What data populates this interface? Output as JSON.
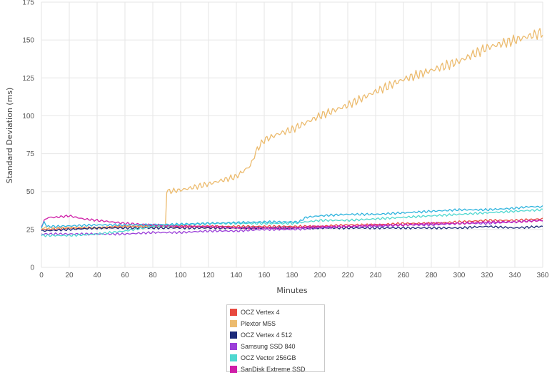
{
  "chart_data": {
    "type": "line",
    "xlabel": "Minutes",
    "ylabel": "Standard Deviation (ms)",
    "xlim": [
      0,
      360
    ],
    "ylim": [
      0,
      175
    ],
    "x_ticks": [
      0,
      20,
      40,
      60,
      80,
      100,
      120,
      140,
      160,
      180,
      200,
      220,
      240,
      260,
      280,
      300,
      320,
      340,
      360
    ],
    "y_ticks": [
      0,
      25,
      50,
      75,
      100,
      125,
      150,
      175
    ],
    "grid": true,
    "legend_position": "bottom",
    "series": [
      {
        "name": "OCZ Vertex 4",
        "color": "#e8493f",
        "x": [
          0,
          20,
          40,
          60,
          80,
          100,
          120,
          140,
          160,
          180,
          200,
          220,
          240,
          260,
          280,
          300,
          320,
          340,
          360
        ],
        "y": [
          25,
          26,
          26,
          27,
          27,
          27,
          27,
          27,
          27,
          27,
          27,
          28,
          28,
          29,
          29,
          30,
          31,
          31,
          32
        ]
      },
      {
        "name": "Plextor M5S",
        "color": "#ecbb6e",
        "x": [
          0,
          20,
          40,
          60,
          80,
          89,
          90,
          100,
          120,
          140,
          150,
          155,
          160,
          170,
          180,
          200,
          220,
          240,
          260,
          280,
          300,
          320,
          340,
          360
        ],
        "y": [
          26,
          26,
          26,
          27,
          27,
          27,
          50,
          51,
          55,
          60,
          67,
          78,
          84,
          88,
          91,
          100,
          107,
          116,
          124,
          130,
          136,
          145,
          150,
          155
        ]
      },
      {
        "name": "OCZ Vertex 4 512",
        "color": "#1c2a7a",
        "x": [
          0,
          20,
          40,
          60,
          80,
          100,
          120,
          140,
          160,
          180,
          200,
          220,
          240,
          260,
          280,
          300,
          320,
          340,
          360
        ],
        "y": [
          24,
          25,
          26,
          26,
          26,
          26,
          26,
          26,
          26,
          26,
          26,
          26,
          26,
          26,
          26,
          26,
          27,
          26,
          27
        ]
      },
      {
        "name": "Samsung SSD 840",
        "color": "#9b3fd9",
        "x": [
          0,
          20,
          40,
          60,
          80,
          100,
          120,
          140,
          160,
          180,
          200,
          220,
          240,
          260,
          280,
          300,
          320,
          340,
          360
        ],
        "y": [
          22,
          22,
          22,
          22,
          23,
          23,
          24,
          24,
          25,
          25,
          26,
          27,
          27,
          28,
          28,
          29,
          29,
          30,
          31
        ]
      },
      {
        "name": "OCZ Vector 256GB",
        "color": "#4fd8d0",
        "x": [
          0,
          20,
          40,
          60,
          80,
          100,
          120,
          140,
          160,
          180,
          200,
          220,
          240,
          260,
          280,
          300,
          320,
          340,
          360
        ],
        "y": [
          21,
          21,
          22,
          24,
          27,
          28,
          29,
          29,
          29,
          29,
          31,
          31,
          32,
          33,
          34,
          35,
          36,
          37,
          38
        ]
      },
      {
        "name": "SanDisk Extreme SSD",
        "color": "#cf1fa8",
        "x": [
          0,
          2,
          5,
          10,
          20,
          25,
          30,
          40,
          60,
          80,
          100,
          120,
          140,
          160,
          180,
          200,
          220,
          240,
          260,
          280,
          300,
          320,
          340,
          360
        ],
        "y": [
          27,
          31,
          33,
          33,
          34,
          33,
          32,
          31,
          29,
          28,
          27,
          27,
          26,
          26,
          26,
          27,
          27,
          28,
          28,
          29,
          29,
          30,
          30,
          31
        ]
      },
      {
        "name": "",
        "color": "#2fb4de",
        "x": [
          0,
          2,
          4,
          10,
          40,
          80,
          120,
          160,
          185,
          190,
          200,
          220,
          240,
          260,
          280,
          300,
          320,
          340,
          350,
          360
        ],
        "y": [
          26,
          30,
          27,
          27,
          28,
          28,
          29,
          30,
          30,
          33,
          34,
          35,
          35,
          36,
          37,
          38,
          38,
          39,
          40,
          40
        ]
      }
    ]
  },
  "legend": {
    "items": [
      {
        "label": "OCZ Vertex 4",
        "color": "#e8493f"
      },
      {
        "label": "Plextor M5S",
        "color": "#ecbb6e"
      },
      {
        "label": "OCZ Vertex 4 512",
        "color": "#1c2a7a"
      },
      {
        "label": "Samsung SSD 840",
        "color": "#9b3fd9"
      },
      {
        "label": "OCZ Vector 256GB",
        "color": "#4fd8d0"
      },
      {
        "label": "SanDisk Extreme SSD",
        "color": "#cf1fa8"
      }
    ]
  }
}
